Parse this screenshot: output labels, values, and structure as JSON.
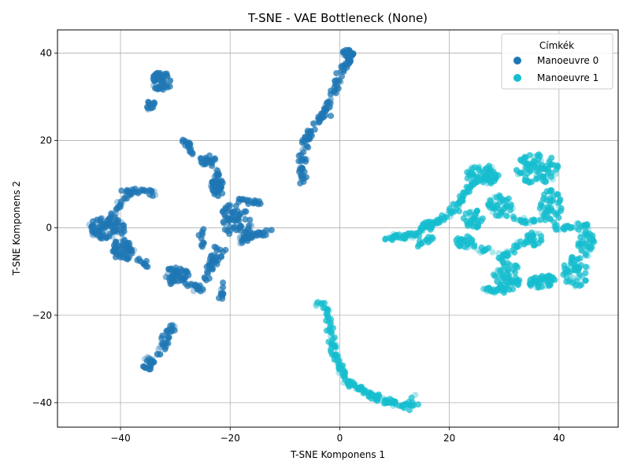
{
  "chart_data": {
    "type": "scatter",
    "title": "T-SNE - VAE Bottleneck (None)",
    "xlabel": "T-SNE Komponens 1",
    "ylabel": "T-SNE Komponens 2",
    "xlim": [
      -51.5,
      50.8
    ],
    "ylim": [
      -45.6,
      45.3
    ],
    "xticks": [
      -40,
      -20,
      0,
      20,
      40
    ],
    "yticks": [
      -40,
      -20,
      0,
      20,
      40
    ],
    "xtick_labels": [
      "−40",
      "−20",
      "0",
      "20",
      "40"
    ],
    "ytick_labels": [
      "−40",
      "−20",
      "0",
      "20",
      "40"
    ],
    "grid": true,
    "legend": {
      "title": "Címkék",
      "position": "top-right"
    },
    "series": [
      {
        "name": "Manoeuvre 0",
        "color": "#1f77b4",
        "clusters": [
          {
            "shape": "blob",
            "center": [
              -32.5,
              33.5
            ],
            "radius": [
              1.8,
              2.2
            ],
            "count": 50
          },
          {
            "shape": "blob",
            "center": [
              -34.5,
              28.0
            ],
            "radius": [
              1.2,
              1.2
            ],
            "count": 15
          },
          {
            "shape": "line",
            "from": [
              -28.5,
              20.5
            ],
            "to": [
              -26.5,
              16.5
            ],
            "count": 20
          },
          {
            "shape": "blob",
            "center": [
              -24.0,
              15.5
            ],
            "radius": [
              1.5,
              1.5
            ],
            "count": 25
          },
          {
            "shape": "line",
            "from": [
              -22.5,
              13.5
            ],
            "to": [
              -22.0,
              7.5
            ],
            "count": 25
          },
          {
            "shape": "blob",
            "center": [
              -22.5,
              11.0
            ],
            "radius": [
              1.2,
              3.0
            ],
            "count": 30
          },
          {
            "shape": "line",
            "from": [
              -25.0,
              0.0
            ],
            "to": [
              -25.0,
              -4.5
            ],
            "count": 12
          },
          {
            "shape": "line",
            "from": [
              -22.5,
              -4.5
            ],
            "to": [
              -24.5,
              -12.0
            ],
            "count": 25
          },
          {
            "shape": "line",
            "from": [
              -40.0,
              9.0
            ],
            "to": [
              -33.5,
              8.0
            ],
            "count": 25
          },
          {
            "shape": "line",
            "from": [
              -38.0,
              8.5
            ],
            "to": [
              -41.5,
              3.0
            ],
            "count": 25
          },
          {
            "shape": "blob",
            "center": [
              -42.5,
              0.0
            ],
            "radius": [
              3.5,
              2.5
            ],
            "count": 90
          },
          {
            "shape": "blob",
            "center": [
              -39.5,
              -5.0
            ],
            "radius": [
              2.0,
              2.5
            ],
            "count": 60
          },
          {
            "shape": "line",
            "from": [
              -37.0,
              -7.0
            ],
            "to": [
              -35.0,
              -8.5
            ],
            "count": 12
          },
          {
            "shape": "blob",
            "center": [
              -30.0,
              -11.0
            ],
            "radius": [
              2.5,
              2.0
            ],
            "count": 60
          },
          {
            "shape": "line",
            "from": [
              -28.0,
              -12.5
            ],
            "to": [
              -25.0,
              -14.5
            ],
            "count": 20
          },
          {
            "shape": "line",
            "from": [
              -21.5,
              -13.0
            ],
            "to": [
              -21.3,
              -16.0
            ],
            "count": 10
          },
          {
            "shape": "line",
            "from": [
              -21.0,
              -5.0
            ],
            "to": [
              -24.0,
              -10.0
            ],
            "count": 15
          },
          {
            "shape": "blob",
            "center": [
              -20.0,
              2.5
            ],
            "radius": [
              1.5,
              4.0
            ],
            "count": 40
          },
          {
            "shape": "blob",
            "center": [
              -17.5,
              0.0
            ],
            "radius": [
              1.5,
              4.0
            ],
            "count": 40
          },
          {
            "shape": "line",
            "from": [
              -18.5,
              6.5
            ],
            "to": [
              -14.5,
              5.5
            ],
            "count": 20
          },
          {
            "shape": "line",
            "from": [
              -17.5,
              -2.5
            ],
            "to": [
              -12.0,
              -0.5
            ],
            "count": 30
          },
          {
            "shape": "line",
            "from": [
              -30.5,
              -22.0
            ],
            "to": [
              -33.0,
              -29.0
            ],
            "count": 35
          },
          {
            "shape": "blob",
            "center": [
              -35.0,
              -31.0
            ],
            "radius": [
              1.2,
              1.5
            ],
            "count": 25
          },
          {
            "shape": "line",
            "from": [
              -7.0,
              10.5
            ],
            "to": [
              -6.5,
              20.0
            ],
            "count": 35
          },
          {
            "shape": "line",
            "from": [
              -6.5,
              20.0
            ],
            "to": [
              -3.0,
              26.0
            ],
            "count": 35
          },
          {
            "shape": "line",
            "from": [
              -3.0,
              26.0
            ],
            "to": [
              0.5,
              36.0
            ],
            "count": 40
          },
          {
            "shape": "line",
            "from": [
              0.5,
              36.0
            ],
            "to": [
              2.5,
              40.5
            ],
            "count": 30
          },
          {
            "shape": "blob",
            "center": [
              1.5,
              40.0
            ],
            "radius": [
              1.0,
              0.8
            ],
            "count": 20
          }
        ]
      },
      {
        "name": "Manoeuvre 1",
        "color": "#17becf",
        "clusters": [
          {
            "shape": "line",
            "from": [
              -4.0,
              -16.5
            ],
            "to": [
              -2.0,
              -20.0
            ],
            "count": 15
          },
          {
            "shape": "line",
            "from": [
              -2.0,
              -20.0
            ],
            "to": [
              -1.0,
              -28.0
            ],
            "count": 30
          },
          {
            "shape": "line",
            "from": [
              -1.0,
              -28.0
            ],
            "to": [
              1.0,
              -35.0
            ],
            "count": 35
          },
          {
            "shape": "line",
            "from": [
              1.0,
              -35.0
            ],
            "to": [
              8.0,
              -39.5
            ],
            "count": 60
          },
          {
            "shape": "line",
            "from": [
              8.0,
              -39.5
            ],
            "to": [
              13.0,
              -41.0
            ],
            "count": 40
          },
          {
            "shape": "line",
            "from": [
              13.0,
              -41.0
            ],
            "to": [
              14.0,
              -38.7
            ],
            "count": 8
          },
          {
            "shape": "line",
            "from": [
              8.5,
              -2.5
            ],
            "to": [
              13.5,
              -1.5
            ],
            "count": 35
          },
          {
            "shape": "line",
            "from": [
              13.5,
              -1.5
            ],
            "to": [
              20.0,
              3.0
            ],
            "count": 40
          },
          {
            "shape": "line",
            "from": [
              20.0,
              3.0
            ],
            "to": [
              24.0,
              10.0
            ],
            "count": 40
          },
          {
            "shape": "blob",
            "center": [
              26.0,
              12.0
            ],
            "radius": [
              3.0,
              2.5
            ],
            "count": 70
          },
          {
            "shape": "blob",
            "center": [
              36.0,
              13.5
            ],
            "radius": [
              4.0,
              3.5
            ],
            "count": 90
          },
          {
            "shape": "blob",
            "center": [
              38.5,
              5.0
            ],
            "radius": [
              2.0,
              4.0
            ],
            "count": 50
          },
          {
            "shape": "blob",
            "center": [
              29.5,
              5.0
            ],
            "radius": [
              2.5,
              2.5
            ],
            "count": 45
          },
          {
            "shape": "blob",
            "center": [
              24.5,
              2.0
            ],
            "radius": [
              2.0,
              2.0
            ],
            "count": 35
          },
          {
            "shape": "line",
            "from": [
              31.5,
              2.0
            ],
            "to": [
              37.0,
              1.5
            ],
            "count": 20
          },
          {
            "shape": "line",
            "from": [
              39.0,
              0.0
            ],
            "to": [
              45.5,
              0.5
            ],
            "count": 30
          },
          {
            "shape": "blob",
            "center": [
              45.0,
              -3.5
            ],
            "radius": [
              1.5,
              3.0
            ],
            "count": 40
          },
          {
            "shape": "blob",
            "center": [
              43.0,
              -10.0
            ],
            "radius": [
              2.5,
              3.5
            ],
            "count": 55
          },
          {
            "shape": "line",
            "from": [
              34.0,
              -3.0
            ],
            "to": [
              29.0,
              -7.0
            ],
            "count": 30
          },
          {
            "shape": "blob",
            "center": [
              35.5,
              -2.5
            ],
            "radius": [
              1.5,
              1.5
            ],
            "count": 25
          },
          {
            "shape": "blob",
            "center": [
              30.5,
              -11.0
            ],
            "radius": [
              2.5,
              3.5
            ],
            "count": 60
          },
          {
            "shape": "line",
            "from": [
              26.0,
              -14.0
            ],
            "to": [
              31.0,
              -14.5
            ],
            "count": 25
          },
          {
            "shape": "blob",
            "center": [
              37.0,
              -12.5
            ],
            "radius": [
              2.5,
              1.5
            ],
            "count": 40
          },
          {
            "shape": "blob",
            "center": [
              23.0,
              -3.0
            ],
            "radius": [
              2.0,
              2.0
            ],
            "count": 30
          },
          {
            "shape": "line",
            "from": [
              15.0,
              0.0
            ],
            "to": [
              17.5,
              1.5
            ],
            "count": 15
          },
          {
            "shape": "line",
            "from": [
              14.0,
              -4.0
            ],
            "to": [
              17.0,
              -2.0
            ],
            "count": 15
          },
          {
            "shape": "line",
            "from": [
              25.5,
              -5.0
            ],
            "to": [
              27.5,
              -5.0
            ],
            "count": 10
          },
          {
            "shape": "blob",
            "center": [
              38.0,
              -11.5
            ],
            "radius": [
              1.0,
              0.8
            ],
            "count": 12
          }
        ]
      }
    ]
  }
}
